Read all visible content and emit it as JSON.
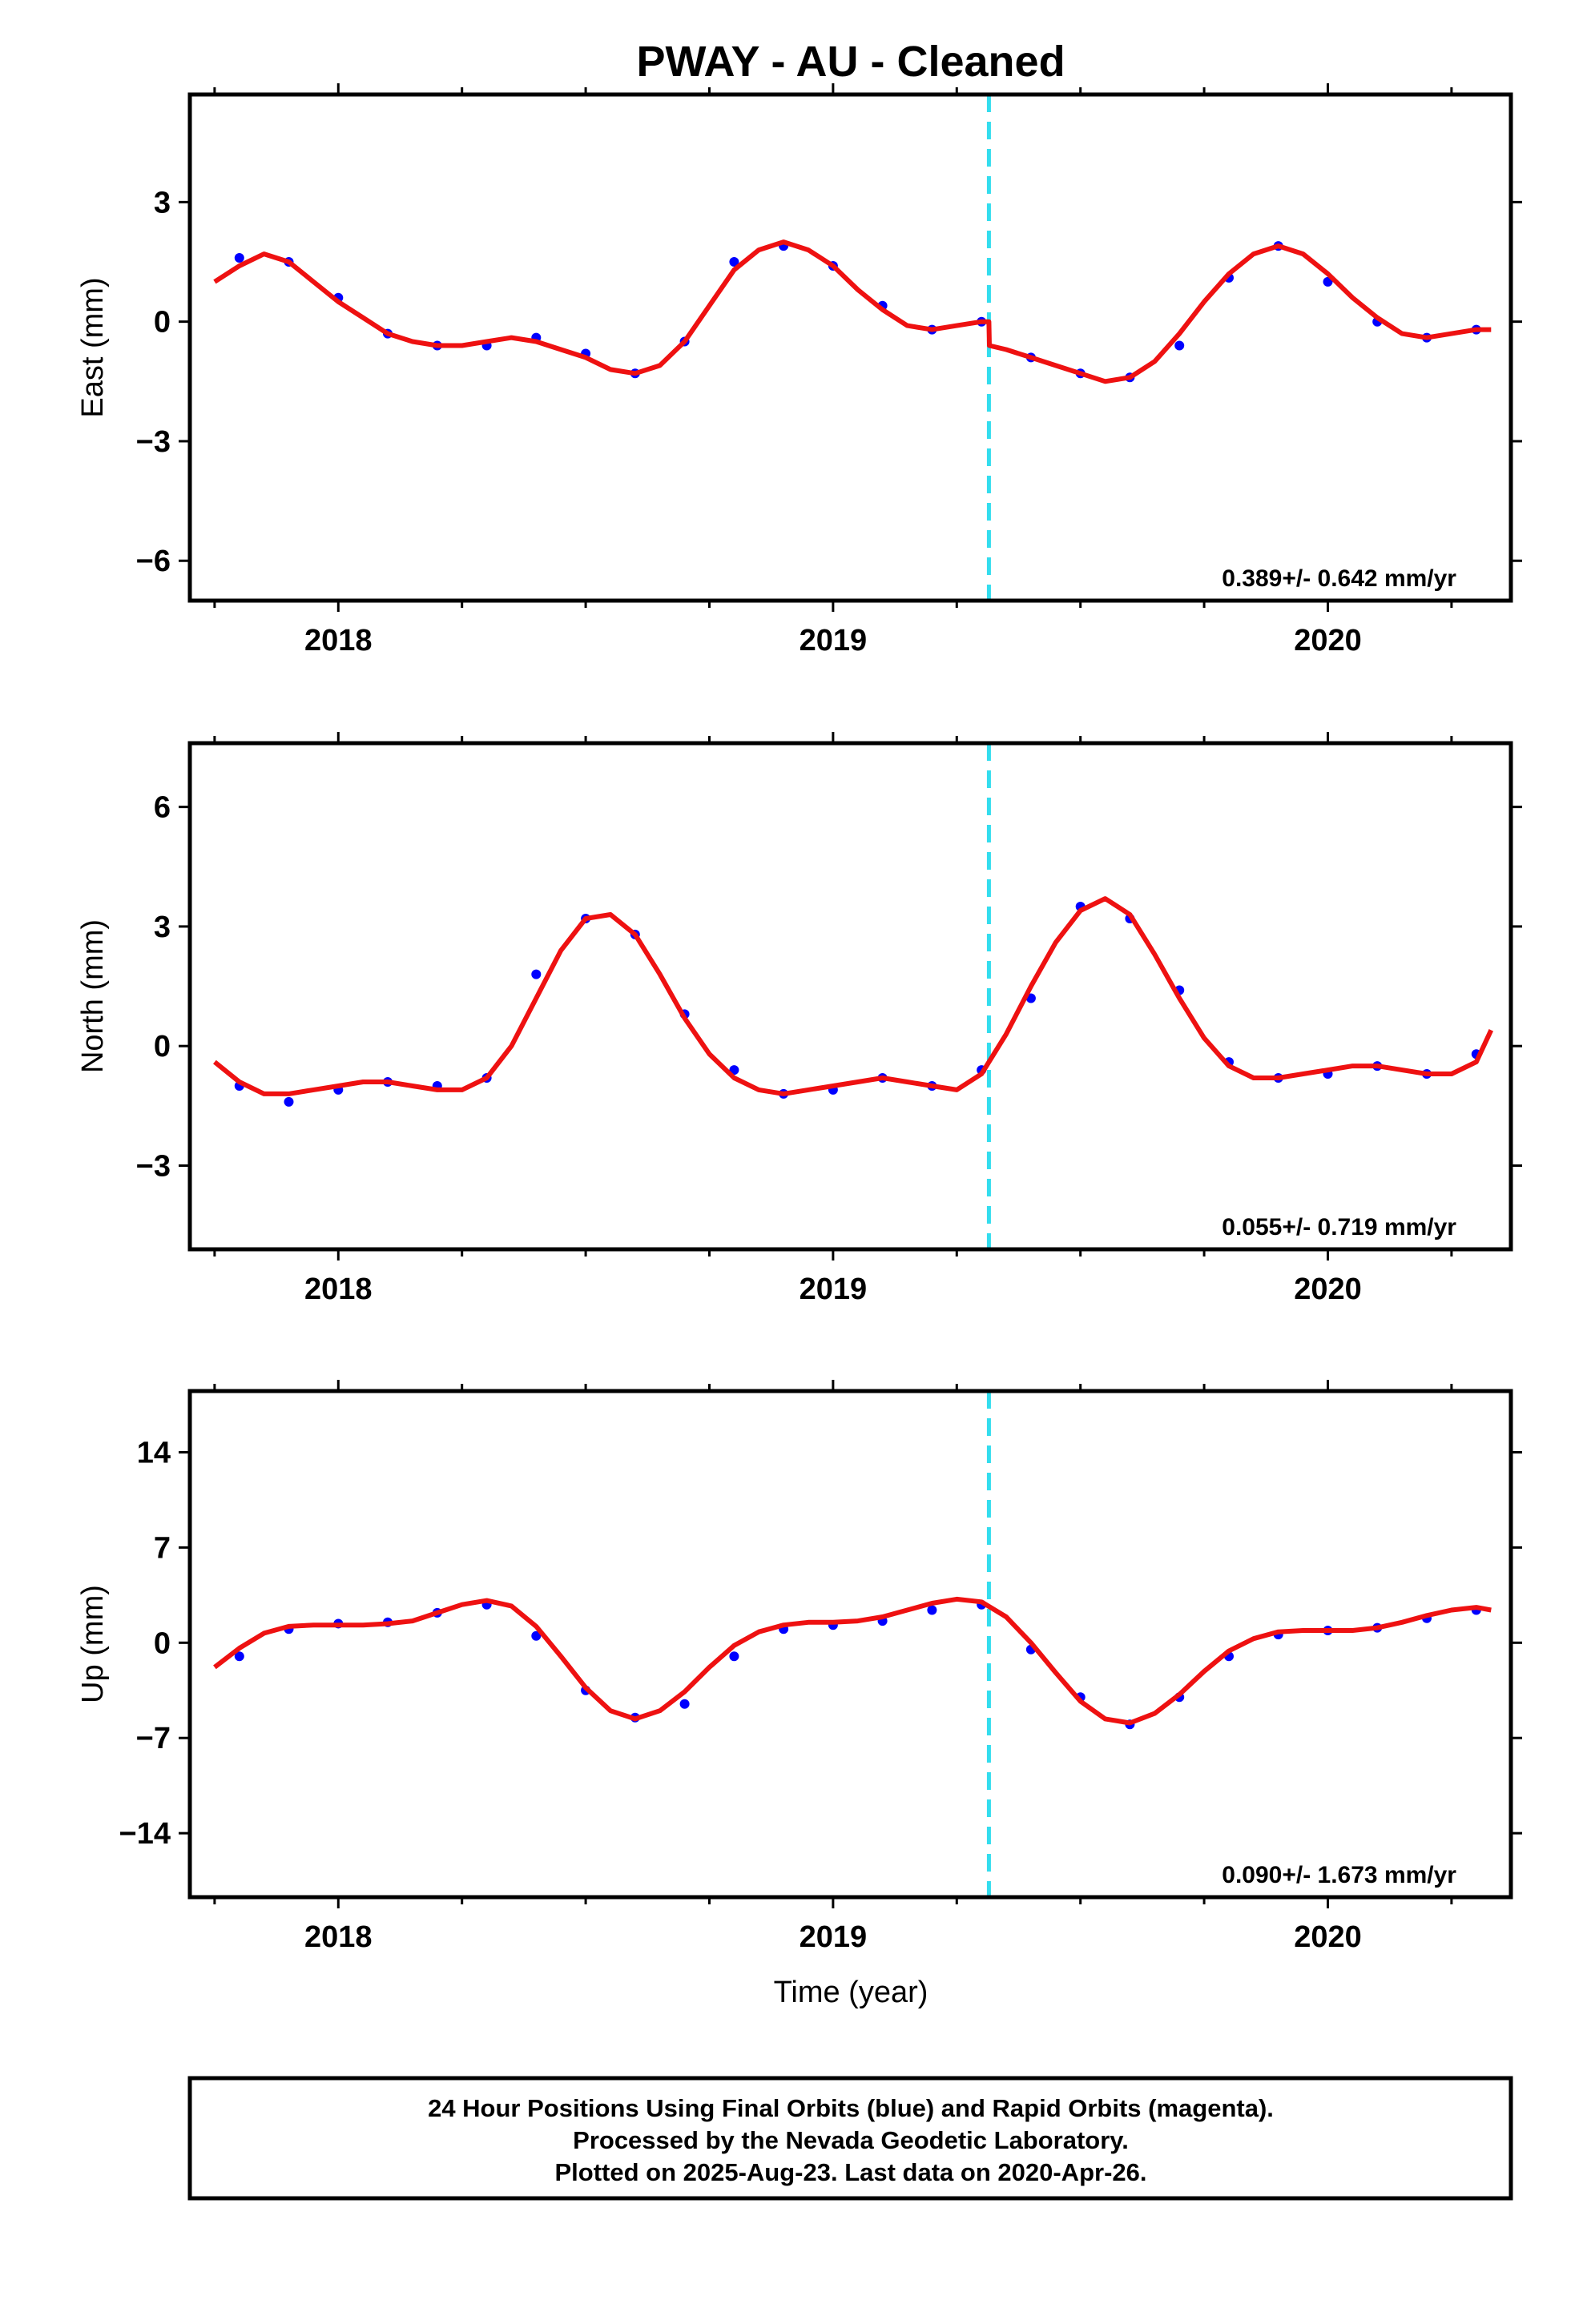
{
  "title": "PWAY  - AU - Cleaned",
  "xlabel": "Time (year)",
  "footer": {
    "line1": "24 Hour Positions Using Final Orbits (blue) and Rapid Orbits (magenta).",
    "line2": "Processed by the Nevada Geodetic Laboratory.",
    "line3": "Plotted on 2025-Aug-23. Last data on 2020-Apr-26."
  },
  "colors": {
    "points": "#0000ff",
    "model": "#ee1111",
    "event": "#33ddee",
    "frame": "#000000"
  },
  "chart_data": [
    {
      "type": "scatter",
      "ylabel": "East (mm)",
      "rate_label": "0.389+/- 0.642 mm/yr",
      "xlim": [
        2017.7,
        2020.37
      ],
      "ylim": [
        -7.0,
        5.7
      ],
      "xticks": [
        2018,
        2019,
        2020
      ],
      "yticks": [
        -6,
        -3,
        0,
        3
      ],
      "event_x": 2019.315,
      "points": [
        [
          2017.8,
          1.6
        ],
        [
          2017.9,
          1.5
        ],
        [
          2018.0,
          0.6
        ],
        [
          2018.1,
          -0.3
        ],
        [
          2018.2,
          -0.6
        ],
        [
          2018.3,
          -0.6
        ],
        [
          2018.4,
          -0.4
        ],
        [
          2018.5,
          -0.8
        ],
        [
          2018.6,
          -1.3
        ],
        [
          2018.7,
          -0.5
        ],
        [
          2018.8,
          1.5
        ],
        [
          2018.9,
          1.9
        ],
        [
          2019.0,
          1.4
        ],
        [
          2019.1,
          0.4
        ],
        [
          2019.2,
          -0.2
        ],
        [
          2019.3,
          0.0
        ],
        [
          2019.4,
          -0.9
        ],
        [
          2019.5,
          -1.3
        ],
        [
          2019.6,
          -1.4
        ],
        [
          2019.7,
          -0.6
        ],
        [
          2019.8,
          1.1
        ],
        [
          2019.9,
          1.9
        ],
        [
          2020.0,
          1.0
        ],
        [
          2020.1,
          0.0
        ],
        [
          2020.2,
          -0.4
        ],
        [
          2020.3,
          -0.2
        ]
      ],
      "model": [
        [
          2017.75,
          1.0
        ],
        [
          2017.8,
          1.4
        ],
        [
          2017.85,
          1.7
        ],
        [
          2017.9,
          1.5
        ],
        [
          2017.95,
          1.0
        ],
        [
          2018.0,
          0.5
        ],
        [
          2018.05,
          0.1
        ],
        [
          2018.1,
          -0.3
        ],
        [
          2018.15,
          -0.5
        ],
        [
          2018.2,
          -0.6
        ],
        [
          2018.25,
          -0.6
        ],
        [
          2018.3,
          -0.5
        ],
        [
          2018.35,
          -0.4
        ],
        [
          2018.4,
          -0.5
        ],
        [
          2018.45,
          -0.7
        ],
        [
          2018.5,
          -0.9
        ],
        [
          2018.55,
          -1.2
        ],
        [
          2018.6,
          -1.3
        ],
        [
          2018.65,
          -1.1
        ],
        [
          2018.7,
          -0.5
        ],
        [
          2018.75,
          0.4
        ],
        [
          2018.8,
          1.3
        ],
        [
          2018.85,
          1.8
        ],
        [
          2018.9,
          2.0
        ],
        [
          2018.95,
          1.8
        ],
        [
          2019.0,
          1.4
        ],
        [
          2019.05,
          0.8
        ],
        [
          2019.1,
          0.3
        ],
        [
          2019.15,
          -0.1
        ],
        [
          2019.2,
          -0.2
        ],
        [
          2019.25,
          -0.1
        ],
        [
          2019.3,
          0.0
        ],
        [
          2019.315,
          0.0
        ],
        [
          2019.316,
          -0.6
        ],
        [
          2019.35,
          -0.7
        ],
        [
          2019.4,
          -0.9
        ],
        [
          2019.45,
          -1.1
        ],
        [
          2019.5,
          -1.3
        ],
        [
          2019.55,
          -1.5
        ],
        [
          2019.6,
          -1.4
        ],
        [
          2019.65,
          -1.0
        ],
        [
          2019.7,
          -0.3
        ],
        [
          2019.75,
          0.5
        ],
        [
          2019.8,
          1.2
        ],
        [
          2019.85,
          1.7
        ],
        [
          2019.9,
          1.9
        ],
        [
          2019.95,
          1.7
        ],
        [
          2020.0,
          1.2
        ],
        [
          2020.05,
          0.6
        ],
        [
          2020.1,
          0.1
        ],
        [
          2020.15,
          -0.3
        ],
        [
          2020.2,
          -0.4
        ],
        [
          2020.25,
          -0.3
        ],
        [
          2020.3,
          -0.2
        ],
        [
          2020.33,
          -0.2
        ]
      ]
    },
    {
      "type": "scatter",
      "ylabel": "North (mm)",
      "rate_label": "0.055+/- 0.719 mm/yr",
      "xlim": [
        2017.7,
        2020.37
      ],
      "ylim": [
        -5.1,
        7.6
      ],
      "xticks": [
        2018,
        2019,
        2020
      ],
      "yticks": [
        -3,
        0,
        3,
        6
      ],
      "event_x": 2019.315,
      "points": [
        [
          2017.8,
          -1.0
        ],
        [
          2017.9,
          -1.4
        ],
        [
          2018.0,
          -1.1
        ],
        [
          2018.1,
          -0.9
        ],
        [
          2018.2,
          -1.0
        ],
        [
          2018.3,
          -0.8
        ],
        [
          2018.4,
          1.8
        ],
        [
          2018.5,
          3.2
        ],
        [
          2018.6,
          2.8
        ],
        [
          2018.7,
          0.8
        ],
        [
          2018.8,
          -0.6
        ],
        [
          2018.9,
          -1.2
        ],
        [
          2019.0,
          -1.1
        ],
        [
          2019.1,
          -0.8
        ],
        [
          2019.2,
          -1.0
        ],
        [
          2019.3,
          -0.6
        ],
        [
          2019.4,
          1.2
        ],
        [
          2019.5,
          3.5
        ],
        [
          2019.6,
          3.2
        ],
        [
          2019.7,
          1.4
        ],
        [
          2019.8,
          -0.4
        ],
        [
          2019.9,
          -0.8
        ],
        [
          2020.0,
          -0.7
        ],
        [
          2020.1,
          -0.5
        ],
        [
          2020.2,
          -0.7
        ],
        [
          2020.3,
          -0.2
        ]
      ],
      "model": [
        [
          2017.75,
          -0.4
        ],
        [
          2017.8,
          -0.9
        ],
        [
          2017.85,
          -1.2
        ],
        [
          2017.9,
          -1.2
        ],
        [
          2017.95,
          -1.1
        ],
        [
          2018.0,
          -1.0
        ],
        [
          2018.05,
          -0.9
        ],
        [
          2018.1,
          -0.9
        ],
        [
          2018.15,
          -1.0
        ],
        [
          2018.2,
          -1.1
        ],
        [
          2018.25,
          -1.1
        ],
        [
          2018.3,
          -0.8
        ],
        [
          2018.35,
          0.0
        ],
        [
          2018.4,
          1.2
        ],
        [
          2018.45,
          2.4
        ],
        [
          2018.5,
          3.2
        ],
        [
          2018.55,
          3.3
        ],
        [
          2018.6,
          2.8
        ],
        [
          2018.65,
          1.8
        ],
        [
          2018.7,
          0.7
        ],
        [
          2018.75,
          -0.2
        ],
        [
          2018.8,
          -0.8
        ],
        [
          2018.85,
          -1.1
        ],
        [
          2018.9,
          -1.2
        ],
        [
          2018.95,
          -1.1
        ],
        [
          2019.0,
          -1.0
        ],
        [
          2019.05,
          -0.9
        ],
        [
          2019.1,
          -0.8
        ],
        [
          2019.15,
          -0.9
        ],
        [
          2019.2,
          -1.0
        ],
        [
          2019.25,
          -1.1
        ],
        [
          2019.3,
          -0.7
        ],
        [
          2019.35,
          0.3
        ],
        [
          2019.4,
          1.5
        ],
        [
          2019.45,
          2.6
        ],
        [
          2019.5,
          3.4
        ],
        [
          2019.55,
          3.7
        ],
        [
          2019.6,
          3.3
        ],
        [
          2019.65,
          2.3
        ],
        [
          2019.7,
          1.2
        ],
        [
          2019.75,
          0.2
        ],
        [
          2019.8,
          -0.5
        ],
        [
          2019.85,
          -0.8
        ],
        [
          2019.9,
          -0.8
        ],
        [
          2019.95,
          -0.7
        ],
        [
          2020.0,
          -0.6
        ],
        [
          2020.05,
          -0.5
        ],
        [
          2020.1,
          -0.5
        ],
        [
          2020.15,
          -0.6
        ],
        [
          2020.2,
          -0.7
        ],
        [
          2020.25,
          -0.7
        ],
        [
          2020.3,
          -0.4
        ],
        [
          2020.33,
          0.4
        ]
      ]
    },
    {
      "type": "scatter",
      "ylabel": "Up (mm)",
      "rate_label": "0.090+/- 1.673 mm/yr",
      "xlim": [
        2017.7,
        2020.37
      ],
      "ylim": [
        -18.7,
        18.5
      ],
      "xticks": [
        2018,
        2019,
        2020
      ],
      "yticks": [
        -14,
        -7,
        0,
        7,
        14
      ],
      "event_x": 2019.315,
      "points": [
        [
          2017.8,
          -1.0
        ],
        [
          2017.9,
          1.0
        ],
        [
          2018.0,
          1.4
        ],
        [
          2018.1,
          1.5
        ],
        [
          2018.2,
          2.2
        ],
        [
          2018.3,
          2.8
        ],
        [
          2018.4,
          0.5
        ],
        [
          2018.5,
          -3.5
        ],
        [
          2018.6,
          -5.5
        ],
        [
          2018.7,
          -4.5
        ],
        [
          2018.8,
          -1.0
        ],
        [
          2018.9,
          1.0
        ],
        [
          2019.0,
          1.3
        ],
        [
          2019.1,
          1.6
        ],
        [
          2019.2,
          2.4
        ],
        [
          2019.3,
          2.8
        ],
        [
          2019.4,
          -0.5
        ],
        [
          2019.5,
          -4.0
        ],
        [
          2019.6,
          -6.0
        ],
        [
          2019.7,
          -4.0
        ],
        [
          2019.8,
          -1.0
        ],
        [
          2019.9,
          0.6
        ],
        [
          2020.0,
          0.9
        ],
        [
          2020.1,
          1.1
        ],
        [
          2020.2,
          1.8
        ],
        [
          2020.3,
          2.4
        ]
      ],
      "model": [
        [
          2017.75,
          -1.8
        ],
        [
          2017.8,
          -0.4
        ],
        [
          2017.85,
          0.7
        ],
        [
          2017.9,
          1.2
        ],
        [
          2017.95,
          1.3
        ],
        [
          2018.0,
          1.3
        ],
        [
          2018.05,
          1.3
        ],
        [
          2018.1,
          1.4
        ],
        [
          2018.15,
          1.6
        ],
        [
          2018.2,
          2.2
        ],
        [
          2018.25,
          2.8
        ],
        [
          2018.3,
          3.1
        ],
        [
          2018.35,
          2.7
        ],
        [
          2018.4,
          1.2
        ],
        [
          2018.45,
          -1.0
        ],
        [
          2018.5,
          -3.3
        ],
        [
          2018.55,
          -5.0
        ],
        [
          2018.6,
          -5.6
        ],
        [
          2018.65,
          -5.0
        ],
        [
          2018.7,
          -3.6
        ],
        [
          2018.75,
          -1.8
        ],
        [
          2018.8,
          -0.2
        ],
        [
          2018.85,
          0.8
        ],
        [
          2018.9,
          1.3
        ],
        [
          2018.95,
          1.5
        ],
        [
          2019.0,
          1.5
        ],
        [
          2019.05,
          1.6
        ],
        [
          2019.1,
          1.9
        ],
        [
          2019.15,
          2.4
        ],
        [
          2019.2,
          2.9
        ],
        [
          2019.25,
          3.2
        ],
        [
          2019.3,
          3.0
        ],
        [
          2019.35,
          1.9
        ],
        [
          2019.4,
          0.0
        ],
        [
          2019.45,
          -2.2
        ],
        [
          2019.5,
          -4.3
        ],
        [
          2019.55,
          -5.6
        ],
        [
          2019.6,
          -5.9
        ],
        [
          2019.65,
          -5.2
        ],
        [
          2019.7,
          -3.8
        ],
        [
          2019.75,
          -2.1
        ],
        [
          2019.8,
          -0.6
        ],
        [
          2019.85,
          0.3
        ],
        [
          2019.9,
          0.8
        ],
        [
          2019.95,
          0.9
        ],
        [
          2020.0,
          0.9
        ],
        [
          2020.05,
          0.9
        ],
        [
          2020.1,
          1.1
        ],
        [
          2020.15,
          1.5
        ],
        [
          2020.2,
          2.0
        ],
        [
          2020.25,
          2.4
        ],
        [
          2020.3,
          2.6
        ],
        [
          2020.33,
          2.4
        ]
      ]
    }
  ]
}
